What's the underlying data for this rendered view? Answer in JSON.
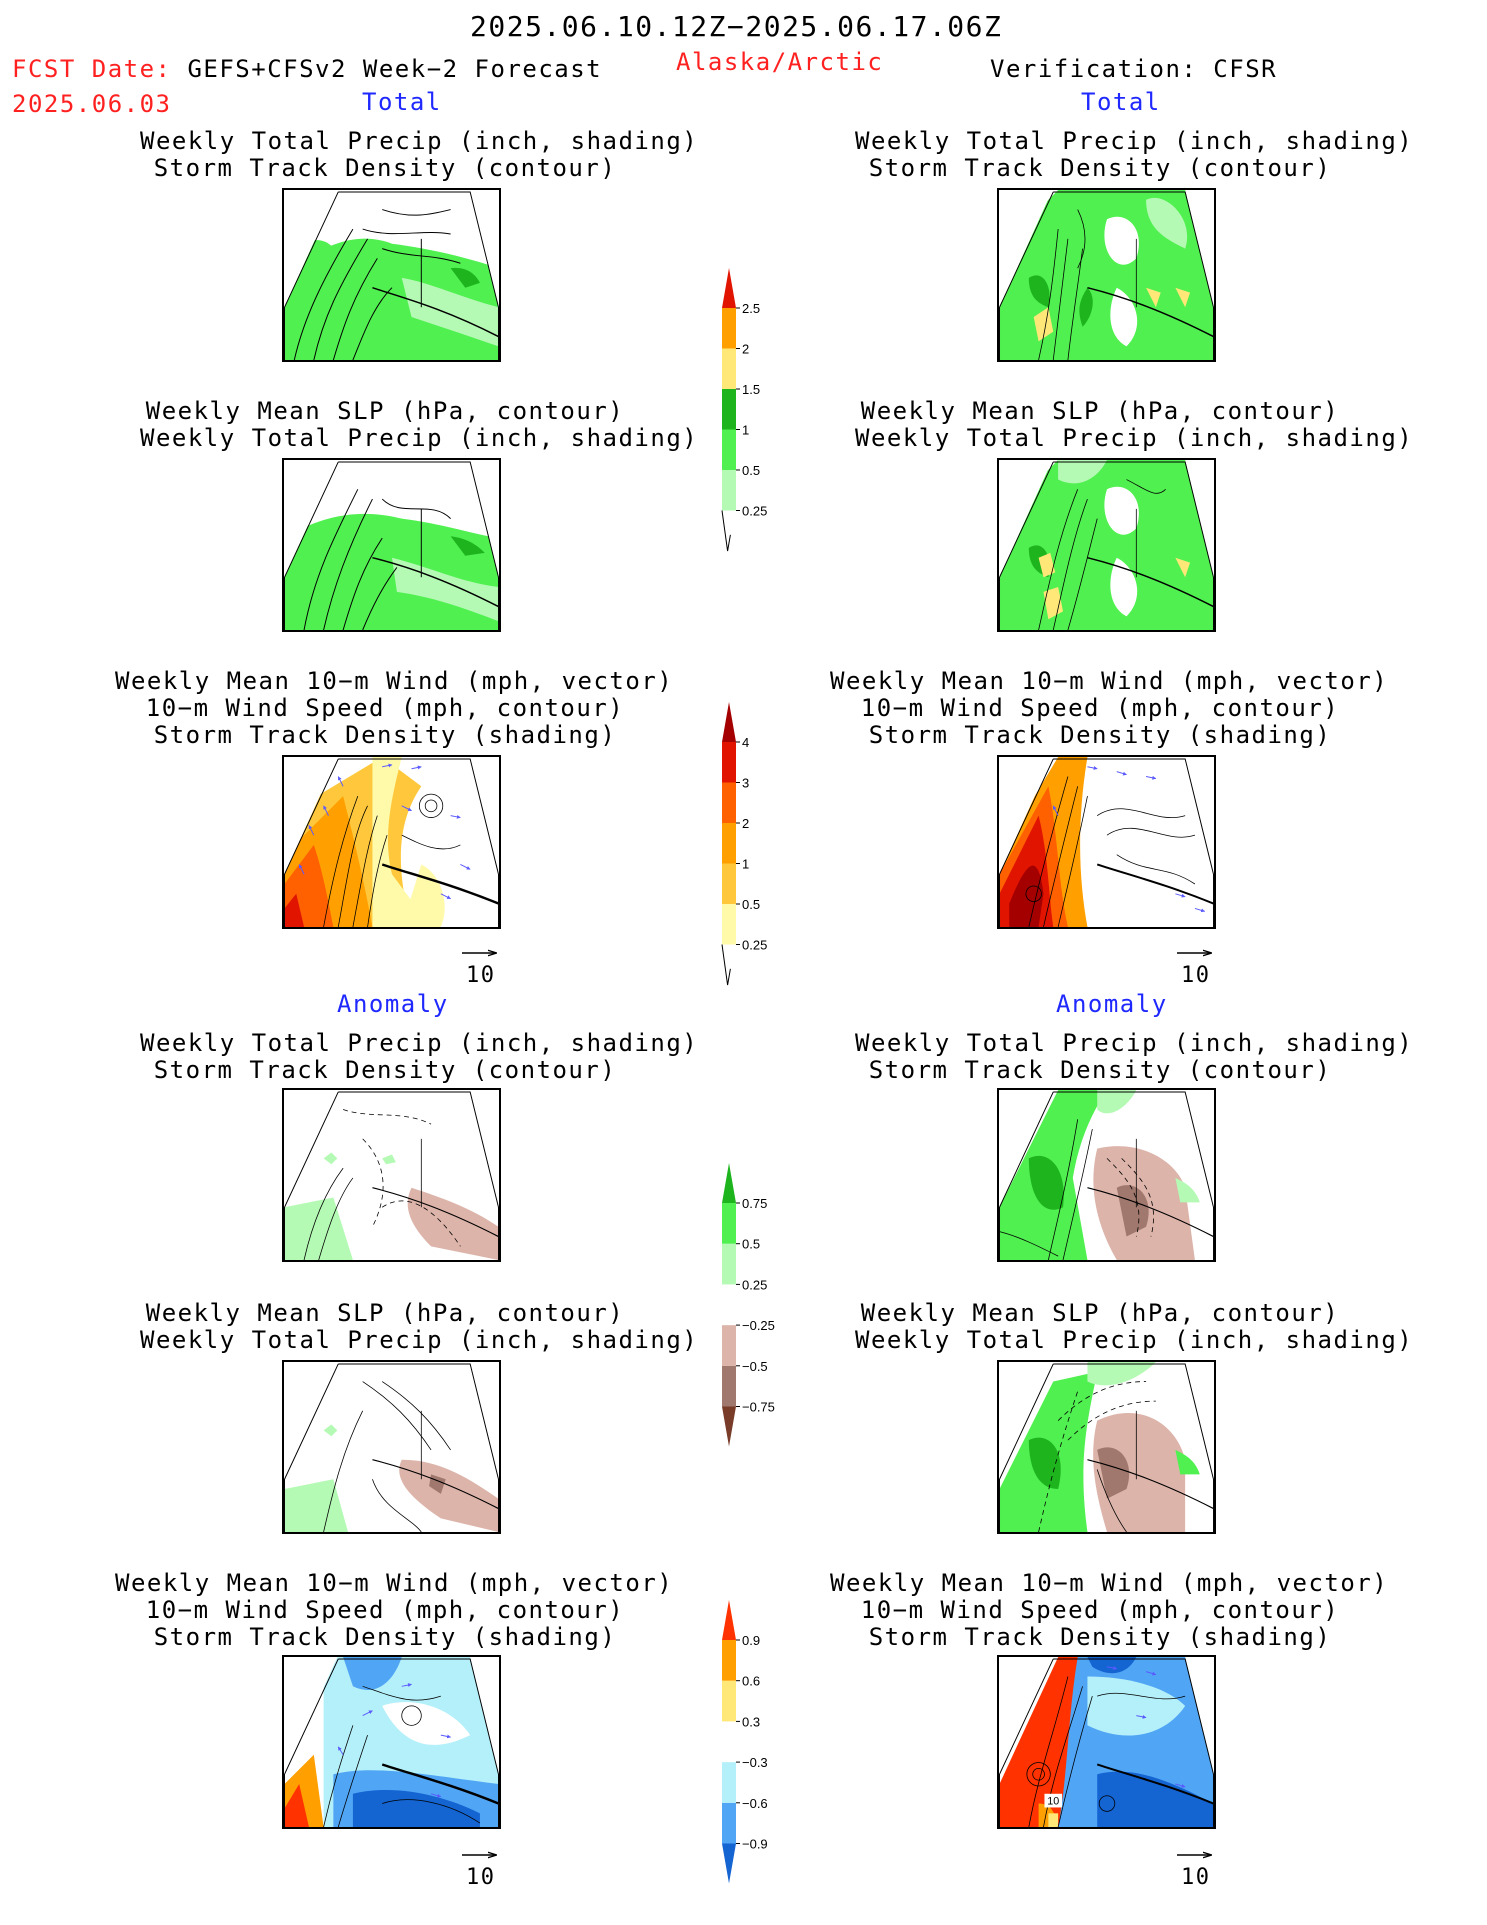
{
  "header": {
    "date_range": "2025.06.10.12Z−2025.06.17.06Z",
    "fcst_label": "FCST Date:",
    "fcst_model": "GEFS+CFSv2 Week−2 Forecast",
    "fcst_date": "2025.06.03",
    "region": "Alaska/Arctic",
    "verification": "Verification: CFSR"
  },
  "sections": {
    "total": "Total",
    "anomaly": "Anomaly"
  },
  "titles": {
    "precip_storm": "Weekly Total Precip (inch, shading)\nStorm Track Density (contour)",
    "slp_precip": "Weekly Mean SLP (hPa, contour)\nWeekly Total Precip (inch, shading)",
    "wind_storm": "Weekly Mean 10−m Wind (mph, vector)\n10−m Wind Speed (mph, contour)\nStorm Track Density (shading)"
  },
  "vector_ref": "10",
  "contour_label": "10",
  "colors": {
    "precip": [
      "#b4fab4",
      "#50f050",
      "#1eb41e",
      "#ffe878",
      "#ffa000",
      "#e11400"
    ],
    "storm": [
      "#fffaaa",
      "#ffc83c",
      "#ffa000",
      "#ff6000",
      "#e11400",
      "#a50000"
    ],
    "precip_anom": [
      "#783c28",
      "#a0786e",
      "#dcb4aa",
      "#ffffff",
      "#b4fab4",
      "#50f050",
      "#1eb41e"
    ],
    "storm_anom": [
      "#1464d2",
      "#50a5f5",
      "#b4f0fa",
      "#ffffff",
      "#ffe878",
      "#ffa000",
      "#ff3200"
    ],
    "text_red": "#ff2020",
    "text_blue": "#1e28ff"
  },
  "colorbars": {
    "precip": [
      "0.25",
      "0.5",
      "1",
      "1.5",
      "2",
      "2.5"
    ],
    "storm": [
      "0.25",
      "0.5",
      "1",
      "2",
      "3",
      "4"
    ],
    "precip_anom": [
      "−0.75",
      "−0.5",
      "−0.25",
      "0.25",
      "0.5",
      "0.75"
    ],
    "storm_anom": [
      "−0.9",
      "−0.6",
      "−0.3",
      "0.3",
      "0.6",
      "0.9"
    ]
  }
}
